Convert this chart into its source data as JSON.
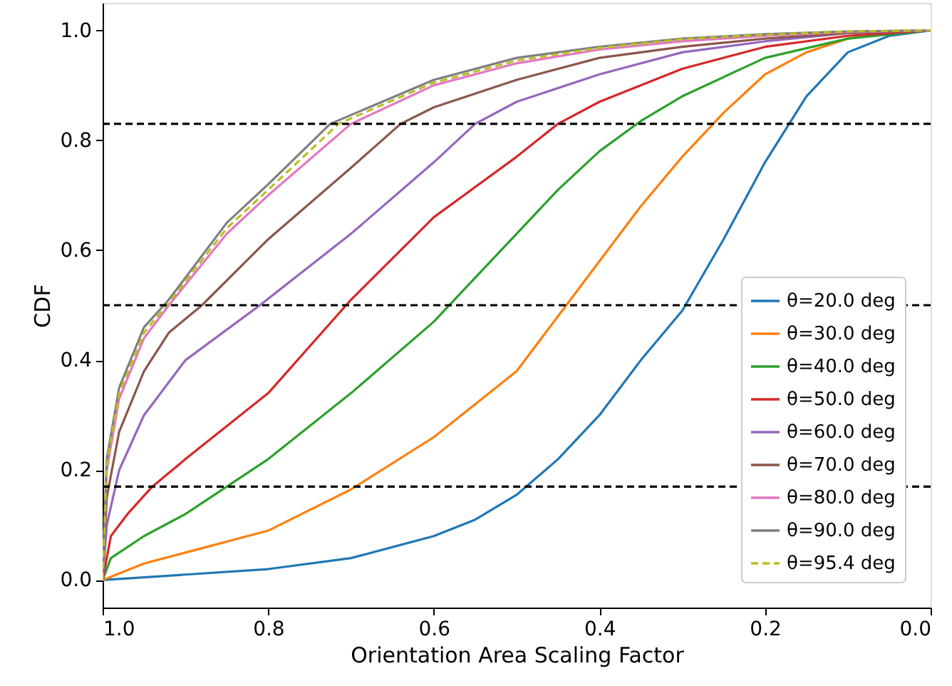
{
  "chart_data": {
    "type": "line",
    "xlabel": "Orientation Area Scaling Factor",
    "ylabel": "CDF",
    "xlim": [
      1.0,
      0.0
    ],
    "ylim": [
      -0.05,
      1.05
    ],
    "xticks": [
      {
        "value": 1.0,
        "label": "1.0"
      },
      {
        "value": 0.8,
        "label": "0.8"
      },
      {
        "value": 0.6,
        "label": "0.6"
      },
      {
        "value": 0.4,
        "label": "0.4"
      },
      {
        "value": 0.2,
        "label": "0.2"
      },
      {
        "value": 0.0,
        "label": "0.0"
      }
    ],
    "yticks": [
      {
        "value": 0.0,
        "label": "0.0"
      },
      {
        "value": 0.2,
        "label": "0.2"
      },
      {
        "value": 0.4,
        "label": "0.4"
      },
      {
        "value": 0.6,
        "label": "0.6"
      },
      {
        "value": 0.8,
        "label": "0.8"
      },
      {
        "value": 1.0,
        "label": "1.0"
      }
    ],
    "grid": false,
    "legend": "bottom right",
    "marker": "none",
    "ref_lines": [
      {
        "axis": "y",
        "value": 0.83,
        "color": "#000000",
        "line_style": "dashed"
      },
      {
        "axis": "y",
        "value": 0.5,
        "color": "#000000",
        "line_style": "dashed"
      },
      {
        "axis": "y",
        "value": 0.17,
        "color": "#000000",
        "line_style": "dashed"
      }
    ],
    "series": [
      {
        "name": "θ=20.0 deg",
        "color": "#1f77b4",
        "line_style": "solid",
        "x": [
          1.0,
          0.9,
          0.8,
          0.7,
          0.6,
          0.55,
          0.5,
          0.45,
          0.4,
          0.35,
          0.3,
          0.25,
          0.2,
          0.15,
          0.1,
          0.05,
          0.0
        ],
        "values": [
          0.0,
          0.01,
          0.02,
          0.04,
          0.08,
          0.11,
          0.155,
          0.22,
          0.3,
          0.4,
          0.49,
          0.62,
          0.76,
          0.88,
          0.96,
          0.99,
          1.0
        ]
      },
      {
        "name": "θ=30.0 deg",
        "color": "#ff7f0e",
        "line_style": "solid",
        "x": [
          1.0,
          0.95,
          0.9,
          0.8,
          0.7,
          0.6,
          0.5,
          0.45,
          0.4,
          0.35,
          0.3,
          0.25,
          0.2,
          0.15,
          0.1,
          0.05,
          0.0
        ],
        "values": [
          0.0,
          0.03,
          0.05,
          0.09,
          0.165,
          0.26,
          0.38,
          0.48,
          0.58,
          0.68,
          0.77,
          0.85,
          0.92,
          0.96,
          0.985,
          0.995,
          1.0
        ]
      },
      {
        "name": "θ=40.0 deg",
        "color": "#2ca02c",
        "line_style": "solid",
        "x": [
          1.0,
          0.99,
          0.95,
          0.9,
          0.85,
          0.8,
          0.7,
          0.6,
          0.55,
          0.5,
          0.45,
          0.4,
          0.35,
          0.3,
          0.2,
          0.1,
          0.0
        ],
        "values": [
          0.0,
          0.04,
          0.08,
          0.12,
          0.17,
          0.22,
          0.34,
          0.47,
          0.55,
          0.63,
          0.71,
          0.78,
          0.835,
          0.88,
          0.95,
          0.985,
          1.0
        ]
      },
      {
        "name": "θ=50.0 deg",
        "color": "#d62728",
        "line_style": "solid",
        "x": [
          1.0,
          0.99,
          0.97,
          0.94,
          0.9,
          0.8,
          0.7,
          0.6,
          0.5,
          0.45,
          0.4,
          0.3,
          0.2,
          0.1,
          0.0
        ],
        "values": [
          0.0,
          0.08,
          0.12,
          0.17,
          0.22,
          0.34,
          0.51,
          0.66,
          0.77,
          0.83,
          0.87,
          0.93,
          0.97,
          0.99,
          1.0
        ]
      },
      {
        "name": "θ=60.0 deg",
        "color": "#9467bd",
        "line_style": "solid",
        "x": [
          1.0,
          0.995,
          0.98,
          0.95,
          0.9,
          0.81,
          0.7,
          0.6,
          0.55,
          0.5,
          0.4,
          0.3,
          0.2,
          0.1,
          0.0
        ],
        "values": [
          0.0,
          0.1,
          0.2,
          0.3,
          0.4,
          0.5,
          0.63,
          0.76,
          0.83,
          0.87,
          0.92,
          0.96,
          0.98,
          0.995,
          1.0
        ]
      },
      {
        "name": "θ=70.0 deg",
        "color": "#8c564b",
        "line_style": "solid",
        "x": [
          1.0,
          0.995,
          0.98,
          0.95,
          0.92,
          0.88,
          0.8,
          0.7,
          0.64,
          0.6,
          0.5,
          0.4,
          0.3,
          0.2,
          0.1,
          0.0
        ],
        "values": [
          0.0,
          0.15,
          0.27,
          0.38,
          0.45,
          0.5,
          0.62,
          0.75,
          0.83,
          0.86,
          0.91,
          0.95,
          0.97,
          0.985,
          0.995,
          1.0
        ]
      },
      {
        "name": "θ=80.0 deg",
        "color": "#e377c2",
        "line_style": "solid",
        "x": [
          1.0,
          0.995,
          0.98,
          0.95,
          0.92,
          0.85,
          0.8,
          0.7,
          0.6,
          0.5,
          0.4,
          0.3,
          0.2,
          0.1,
          0.0
        ],
        "values": [
          0.0,
          0.2,
          0.33,
          0.44,
          0.5,
          0.63,
          0.7,
          0.83,
          0.9,
          0.94,
          0.965,
          0.98,
          0.99,
          0.997,
          1.0
        ]
      },
      {
        "name": "θ=90.0 deg",
        "color": "#7f7f7f",
        "line_style": "solid",
        "x": [
          1.0,
          0.995,
          0.98,
          0.95,
          0.92,
          0.85,
          0.8,
          0.725,
          0.6,
          0.5,
          0.4,
          0.3,
          0.2,
          0.1,
          0.0
        ],
        "values": [
          0.0,
          0.22,
          0.35,
          0.46,
          0.51,
          0.65,
          0.72,
          0.83,
          0.91,
          0.95,
          0.97,
          0.985,
          0.993,
          0.998,
          1.0
        ]
      },
      {
        "name": "θ=95.4 deg",
        "color": "#bcbd22",
        "line_style": "dashed",
        "x": [
          1.0,
          0.995,
          0.98,
          0.95,
          0.92,
          0.85,
          0.8,
          0.715,
          0.6,
          0.5,
          0.4,
          0.3,
          0.2,
          0.1,
          0.0
        ],
        "values": [
          0.0,
          0.21,
          0.34,
          0.45,
          0.505,
          0.64,
          0.71,
          0.83,
          0.905,
          0.945,
          0.968,
          0.984,
          0.992,
          0.998,
          1.0
        ]
      }
    ]
  }
}
